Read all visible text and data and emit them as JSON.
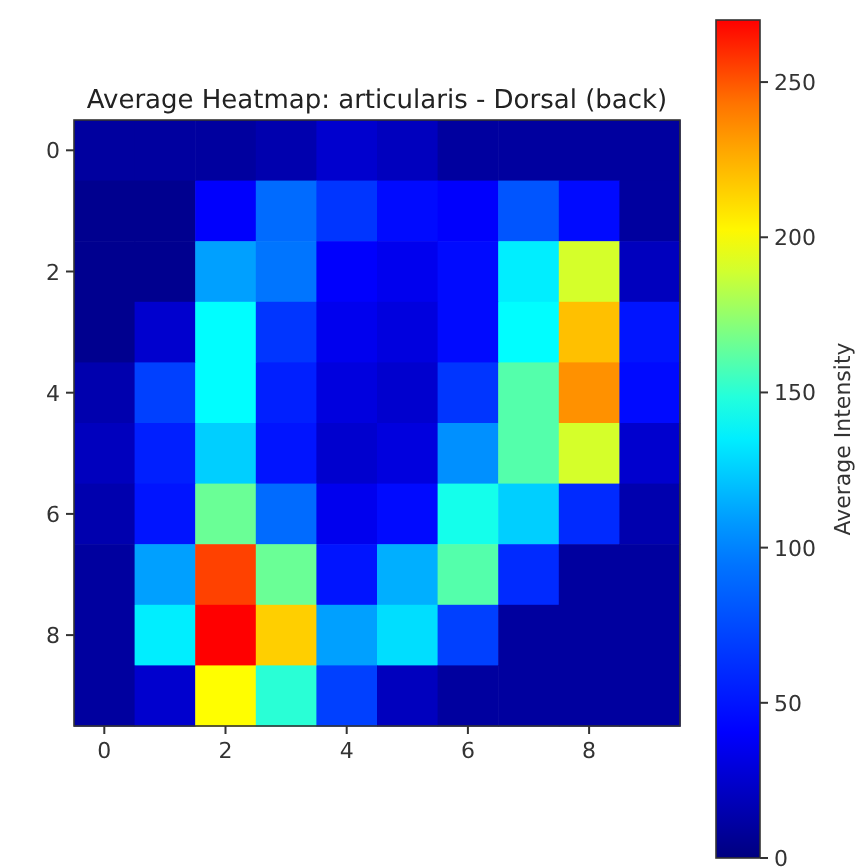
{
  "chart_data": {
    "type": "heatmap",
    "title": "Average Heatmap: articularis - Dorsal (back)",
    "clabel": "Average Intensity",
    "categories": [
      "0",
      null,
      "2",
      null,
      "4",
      null,
      "6",
      null,
      "8",
      null
    ],
    "y_categories": [
      "0",
      null,
      "2",
      null,
      "4",
      null,
      "6",
      null,
      "8",
      null
    ],
    "cells": [
      [
        10,
        10,
        10,
        15,
        25,
        20,
        10,
        10,
        10,
        10
      ],
      [
        5,
        5,
        40,
        90,
        65,
        45,
        40,
        80,
        45,
        10
      ],
      [
        5,
        5,
        110,
        95,
        40,
        35,
        45,
        135,
        190,
        20
      ],
      [
        5,
        25,
        140,
        65,
        35,
        30,
        45,
        140,
        220,
        50
      ],
      [
        15,
        70,
        140,
        55,
        30,
        25,
        65,
        160,
        235,
        45
      ],
      [
        20,
        55,
        125,
        50,
        25,
        30,
        105,
        160,
        190,
        25
      ],
      [
        15,
        50,
        165,
        90,
        35,
        45,
        145,
        125,
        60,
        15
      ],
      [
        10,
        110,
        255,
        165,
        50,
        115,
        160,
        60,
        10,
        10
      ],
      [
        10,
        135,
        270,
        215,
        110,
        130,
        70,
        10,
        10,
        10
      ],
      [
        10,
        25,
        200,
        150,
        70,
        20,
        10,
        10,
        10,
        10
      ]
    ],
    "clim": [
      0,
      270
    ],
    "cticks": [
      0,
      50,
      100,
      150,
      200,
      250
    ]
  }
}
